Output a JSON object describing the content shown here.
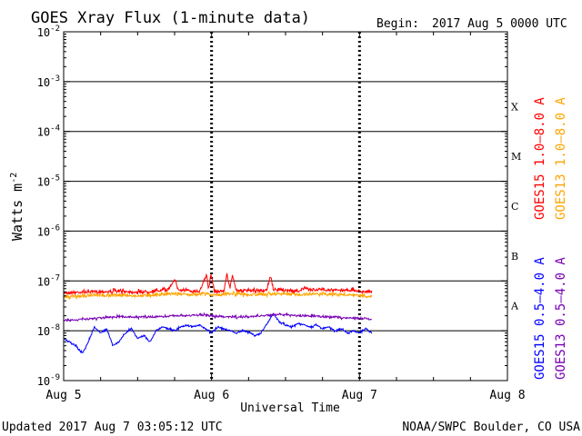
{
  "chart_data": {
    "type": "line",
    "title": "GOES Xray Flux (1-minute data)",
    "begin_label": "Begin:",
    "begin_value": "2017 Aug 5 0000 UTC",
    "ylabel": "Watts m",
    "ylabel_exp": "-2",
    "xlabel": "Universal Time",
    "ylim": [
      1e-09,
      0.01
    ],
    "xlim_hours": [
      0,
      72
    ],
    "y_ticks": [
      {
        "value": 0.01,
        "base": "10",
        "exp": "-2"
      },
      {
        "value": 0.001,
        "base": "10",
        "exp": "-3"
      },
      {
        "value": 0.0001,
        "base": "10",
        "exp": "-4"
      },
      {
        "value": 1e-05,
        "base": "10",
        "exp": "-5"
      },
      {
        "value": 1e-06,
        "base": "10",
        "exp": "-6"
      },
      {
        "value": 1e-07,
        "base": "10",
        "exp": "-7"
      },
      {
        "value": 1e-08,
        "base": "10",
        "exp": "-8"
      },
      {
        "value": 1e-09,
        "base": "10",
        "exp": "-9"
      }
    ],
    "x_ticks": [
      {
        "hour": 0,
        "label": "Aug 5"
      },
      {
        "hour": 24,
        "label": "Aug 6"
      },
      {
        "hour": 48,
        "label": "Aug 7"
      },
      {
        "hour": 72,
        "label": "Aug 8"
      }
    ],
    "flare_classes": [
      {
        "label": "X",
        "low": 0.0001,
        "high": 0.001
      },
      {
        "label": "M",
        "low": 1e-05,
        "high": 0.0001
      },
      {
        "label": "C",
        "low": 1e-06,
        "high": 1e-05
      },
      {
        "label": "B",
        "low": 1e-07,
        "high": 1e-06
      },
      {
        "label": "A",
        "low": 1e-08,
        "high": 1e-07
      }
    ],
    "data_end_hour": 50.1,
    "series": [
      {
        "name": "GOES15 1.0-8.0 A",
        "color": "#ff0000",
        "dx": 1.5,
        "points": [
          [
            0,
            5.8e-08
          ],
          [
            3,
            6e-08
          ],
          [
            6,
            6.1e-08
          ],
          [
            9,
            6.2e-08
          ],
          [
            12,
            6e-08
          ],
          [
            15,
            6.3e-08
          ],
          [
            17,
            6.8e-08
          ],
          [
            18,
            1.1e-07
          ],
          [
            18.6,
            6.6e-08
          ],
          [
            20,
            6.4e-08
          ],
          [
            22,
            6.2e-08
          ],
          [
            23.2,
            1.3e-07
          ],
          [
            23.5,
            7e-08
          ],
          [
            23.9,
            1.3e-07
          ],
          [
            24.5,
            6.2e-08
          ],
          [
            26,
            6.3e-08
          ],
          [
            26.5,
            1.4e-07
          ],
          [
            27,
            7e-08
          ],
          [
            27.4,
            1.3e-07
          ],
          [
            28,
            6.5e-08
          ],
          [
            30,
            6.3e-08
          ],
          [
            32,
            6.4e-08
          ],
          [
            33,
            6.4e-08
          ],
          [
            33.5,
            1.3e-07
          ],
          [
            34,
            6.8e-08
          ],
          [
            36,
            6.6e-08
          ],
          [
            38,
            6.2e-08
          ],
          [
            39,
            7.2e-08
          ],
          [
            40,
            6.6e-08
          ],
          [
            42,
            6.8e-08
          ],
          [
            44,
            6.5e-08
          ],
          [
            46,
            6.6e-08
          ],
          [
            48,
            6.3e-08
          ],
          [
            50,
            6e-08
          ]
        ]
      },
      {
        "name": "GOES13 1.0-8.0 A",
        "color": "#ffa500",
        "dx": 1.5,
        "points": [
          [
            0,
            4.8e-08
          ],
          [
            3,
            5e-08
          ],
          [
            6,
            5.1e-08
          ],
          [
            9,
            5.2e-08
          ],
          [
            12,
            5e-08
          ],
          [
            15,
            5.3e-08
          ],
          [
            18,
            5.6e-08
          ],
          [
            20,
            5.3e-08
          ],
          [
            23,
            5.6e-08
          ],
          [
            24,
            5.2e-08
          ],
          [
            26,
            5.4e-08
          ],
          [
            28,
            5.6e-08
          ],
          [
            30,
            5.3e-08
          ],
          [
            33,
            5.4e-08
          ],
          [
            35,
            5.5e-08
          ],
          [
            38,
            5.3e-08
          ],
          [
            40,
            5.5e-08
          ],
          [
            42,
            5.6e-08
          ],
          [
            45,
            5.3e-08
          ],
          [
            48,
            5e-08
          ],
          [
            50,
            4.9e-08
          ]
        ]
      },
      {
        "name": "GOES15 0.5-4.0 A",
        "color": "#0000ff",
        "dx": 0.8,
        "points": [
          [
            0,
            7e-09
          ],
          [
            1,
            6e-09
          ],
          [
            2,
            5e-09
          ],
          [
            3,
            3.5e-09
          ],
          [
            4,
            6e-09
          ],
          [
            5,
            1.2e-08
          ],
          [
            6,
            9e-09
          ],
          [
            7,
            1.1e-08
          ],
          [
            8,
            5e-09
          ],
          [
            9,
            6e-09
          ],
          [
            10,
            9e-09
          ],
          [
            11,
            1.1e-08
          ],
          [
            12,
            7e-09
          ],
          [
            13,
            8e-09
          ],
          [
            14,
            6e-09
          ],
          [
            15,
            1e-08
          ],
          [
            16,
            1.2e-08
          ],
          [
            17,
            1.1e-08
          ],
          [
            18,
            1e-08
          ],
          [
            19,
            1.2e-08
          ],
          [
            20,
            1.3e-08
          ],
          [
            21,
            1.2e-08
          ],
          [
            22,
            1.3e-08
          ],
          [
            23,
            1.1e-08
          ],
          [
            24,
            9e-09
          ],
          [
            25,
            1.2e-08
          ],
          [
            26,
            1.1e-08
          ],
          [
            27,
            1e-08
          ],
          [
            28,
            9e-09
          ],
          [
            29,
            1e-08
          ],
          [
            30,
            9.5e-09
          ],
          [
            31,
            8e-09
          ],
          [
            32,
            9e-09
          ],
          [
            33,
            1.4e-08
          ],
          [
            34,
            2.2e-08
          ],
          [
            35,
            1.5e-08
          ],
          [
            36,
            1.3e-08
          ],
          [
            37,
            1.2e-08
          ],
          [
            38,
            1.4e-08
          ],
          [
            39,
            1.3e-08
          ],
          [
            40,
            1.2e-08
          ],
          [
            41,
            1.3e-08
          ],
          [
            42,
            1.1e-08
          ],
          [
            43,
            1.2e-08
          ],
          [
            44,
            1e-08
          ],
          [
            45,
            1.1e-08
          ],
          [
            46,
            9e-09
          ],
          [
            47,
            1e-08
          ],
          [
            48,
            9e-09
          ],
          [
            49,
            1.1e-08
          ],
          [
            50,
            9e-09
          ]
        ]
      },
      {
        "name": "GOES13 0.5-4.0 A",
        "color": "#7800b4",
        "dx": 1.0,
        "points": [
          [
            0,
            1.6e-08
          ],
          [
            3,
            1.7e-08
          ],
          [
            6,
            1.8e-08
          ],
          [
            9,
            1.9e-08
          ],
          [
            12,
            1.9e-08
          ],
          [
            15,
            1.9e-08
          ],
          [
            18,
            2e-08
          ],
          [
            20,
            2e-08
          ],
          [
            22,
            2.1e-08
          ],
          [
            24,
            2e-08
          ],
          [
            26,
            1.9e-08
          ],
          [
            28,
            1.9e-08
          ],
          [
            30,
            1.9e-08
          ],
          [
            32,
            2e-08
          ],
          [
            34,
            2.1e-08
          ],
          [
            36,
            2.1e-08
          ],
          [
            38,
            2e-08
          ],
          [
            40,
            2e-08
          ],
          [
            42,
            1.9e-08
          ],
          [
            44,
            1.9e-08
          ],
          [
            46,
            1.8e-08
          ],
          [
            48,
            1.8e-08
          ],
          [
            50,
            1.7e-08
          ]
        ]
      }
    ],
    "legend": [
      {
        "label": "GOES15 1.0–8.0 A",
        "color": "#ff0000"
      },
      {
        "label": "GOES13 1.0–8.0 A",
        "color": "#ffa500"
      },
      {
        "label": "GOES15 0.5–4.0 A",
        "color": "#0000ff"
      },
      {
        "label": "GOES13 0.5–4.0 A",
        "color": "#7800b4"
      }
    ]
  },
  "footer": {
    "updated": "Updated 2017 Aug  7 03:05:12 UTC",
    "source": "NOAA/SWPC Boulder, CO USA"
  }
}
